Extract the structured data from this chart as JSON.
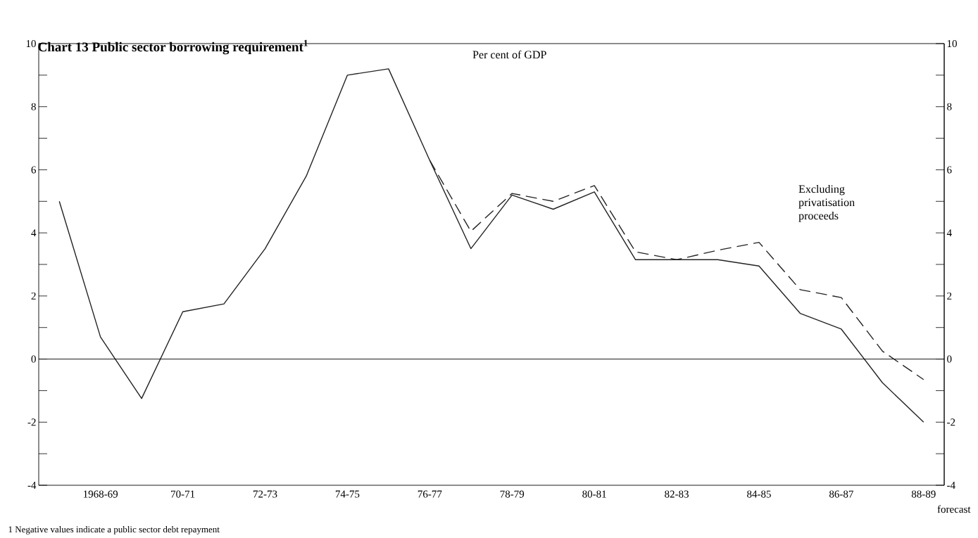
{
  "chart_data": {
    "type": "line",
    "title": "Chart 13 Public sector borrowing requirement$^{1}$",
    "subtitle": "Per cent of GDP",
    "categories": [
      null,
      "1968-69",
      null,
      "70-71",
      null,
      "72-73",
      null,
      "74-75",
      null,
      "76-77",
      null,
      "78-79",
      null,
      "80-81",
      null,
      "82-83",
      null,
      "84-85",
      null,
      "86-87",
      null,
      "88-89"
    ],
    "series": [
      {
        "color": "#222222",
        "line_style": "solid",
        "values": [
          5.0,
          0.7,
          -1.25,
          1.5,
          1.75,
          3.5,
          5.8,
          9.0,
          9.2,
          6.3,
          3.5,
          5.2,
          4.75,
          5.3,
          3.15,
          3.15,
          3.15,
          2.95,
          1.45,
          0.95,
          -0.75,
          -2.0
        ]
      },
      {
        "name": "Excluding privatisation proceeds",
        "color": "#222222",
        "line_style": "dashed",
        "values": [
          null,
          null,
          null,
          null,
          null,
          null,
          null,
          null,
          null,
          6.3,
          4.05,
          5.25,
          5.0,
          5.5,
          3.4,
          3.15,
          3.45,
          3.7,
          2.2,
          1.95,
          0.25,
          -0.65
        ]
      }
    ],
    "ylim": [
      -4,
      10
    ],
    "yticks": [
      -4,
      {
        "value": -3,
        "label": null
      },
      -2,
      {
        "value": -1,
        "label": null
      },
      0,
      {
        "value": 1,
        "label": null
      },
      2,
      {
        "value": 3,
        "label": null
      },
      4,
      {
        "value": 5,
        "label": null
      },
      6,
      {
        "value": 7,
        "label": null
      },
      8,
      {
        "value": 9,
        "label": null
      },
      10
    ],
    "y2lim": [
      -4,
      10
    ],
    "y2ticks": [
      -4,
      {
        "value": -3,
        "label": null
      },
      -2,
      {
        "value": -1,
        "label": null
      },
      0,
      {
        "value": 1,
        "label": null
      },
      2,
      {
        "value": 3,
        "label": null
      },
      4,
      {
        "value": 5,
        "label": null
      },
      6,
      {
        "value": 7,
        "label": null
      },
      8,
      {
        "value": 9,
        "label": null
      },
      10
    ],
    "ref_lines": [
      {
        "axis": "y",
        "value": 0
      }
    ],
    "annotations": [
      "forecast",
      "1 Negative values indicate a public sector debt repayment"
    ]
  }
}
